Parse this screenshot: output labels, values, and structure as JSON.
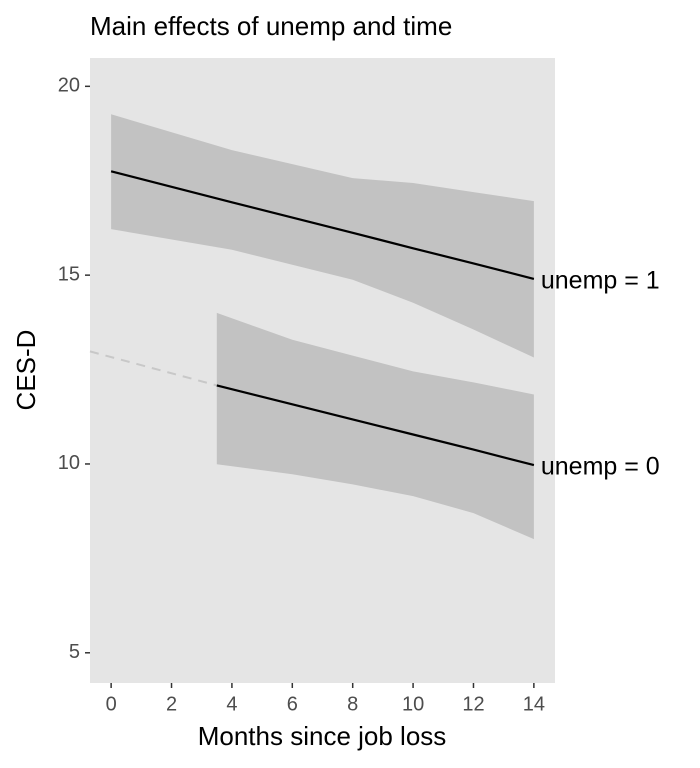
{
  "chart_data": {
    "type": "line",
    "title": "Main effects of unemp and time",
    "x_label": "Months since job loss",
    "y_label": "CES-D",
    "xlim": [
      -0.7,
      14.7
    ],
    "ylim": [
      4.2,
      20.75
    ],
    "xticks": [
      0,
      2,
      4,
      6,
      8,
      10,
      12,
      14
    ],
    "yticks": [
      5,
      10,
      15,
      20
    ],
    "grid": false,
    "panel_color": "#e5e5e5",
    "ribbon_color": "#c2c2c2",
    "series": [
      {
        "name": "unemp = 1",
        "color": "#000000",
        "x": [
          0,
          4,
          8,
          10,
          12,
          14
        ],
        "values": [
          17.75,
          16.93,
          16.12,
          15.71,
          15.31,
          14.9
        ],
        "upper": [
          19.26,
          18.31,
          17.57,
          17.44,
          17.2,
          16.96
        ],
        "lower": [
          16.22,
          15.67,
          14.88,
          14.27,
          13.56,
          12.82
        ]
      },
      {
        "name": "unemp = 0",
        "color": "#000000",
        "x": [
          3.5,
          6,
          8,
          10,
          12,
          14
        ],
        "values": [
          12.08,
          11.58,
          11.18,
          10.78,
          10.38,
          9.97
        ],
        "upper": [
          14.0,
          13.29,
          12.87,
          12.45,
          12.16,
          11.84
        ],
        "lower": [
          9.99,
          9.73,
          9.46,
          9.15,
          8.7,
          8.01
        ]
      }
    ],
    "extrapolation": {
      "x": [
        -0.7,
        3.5
      ],
      "values": [
        12.98,
        12.08
      ],
      "color": "#c8c8c8"
    }
  }
}
